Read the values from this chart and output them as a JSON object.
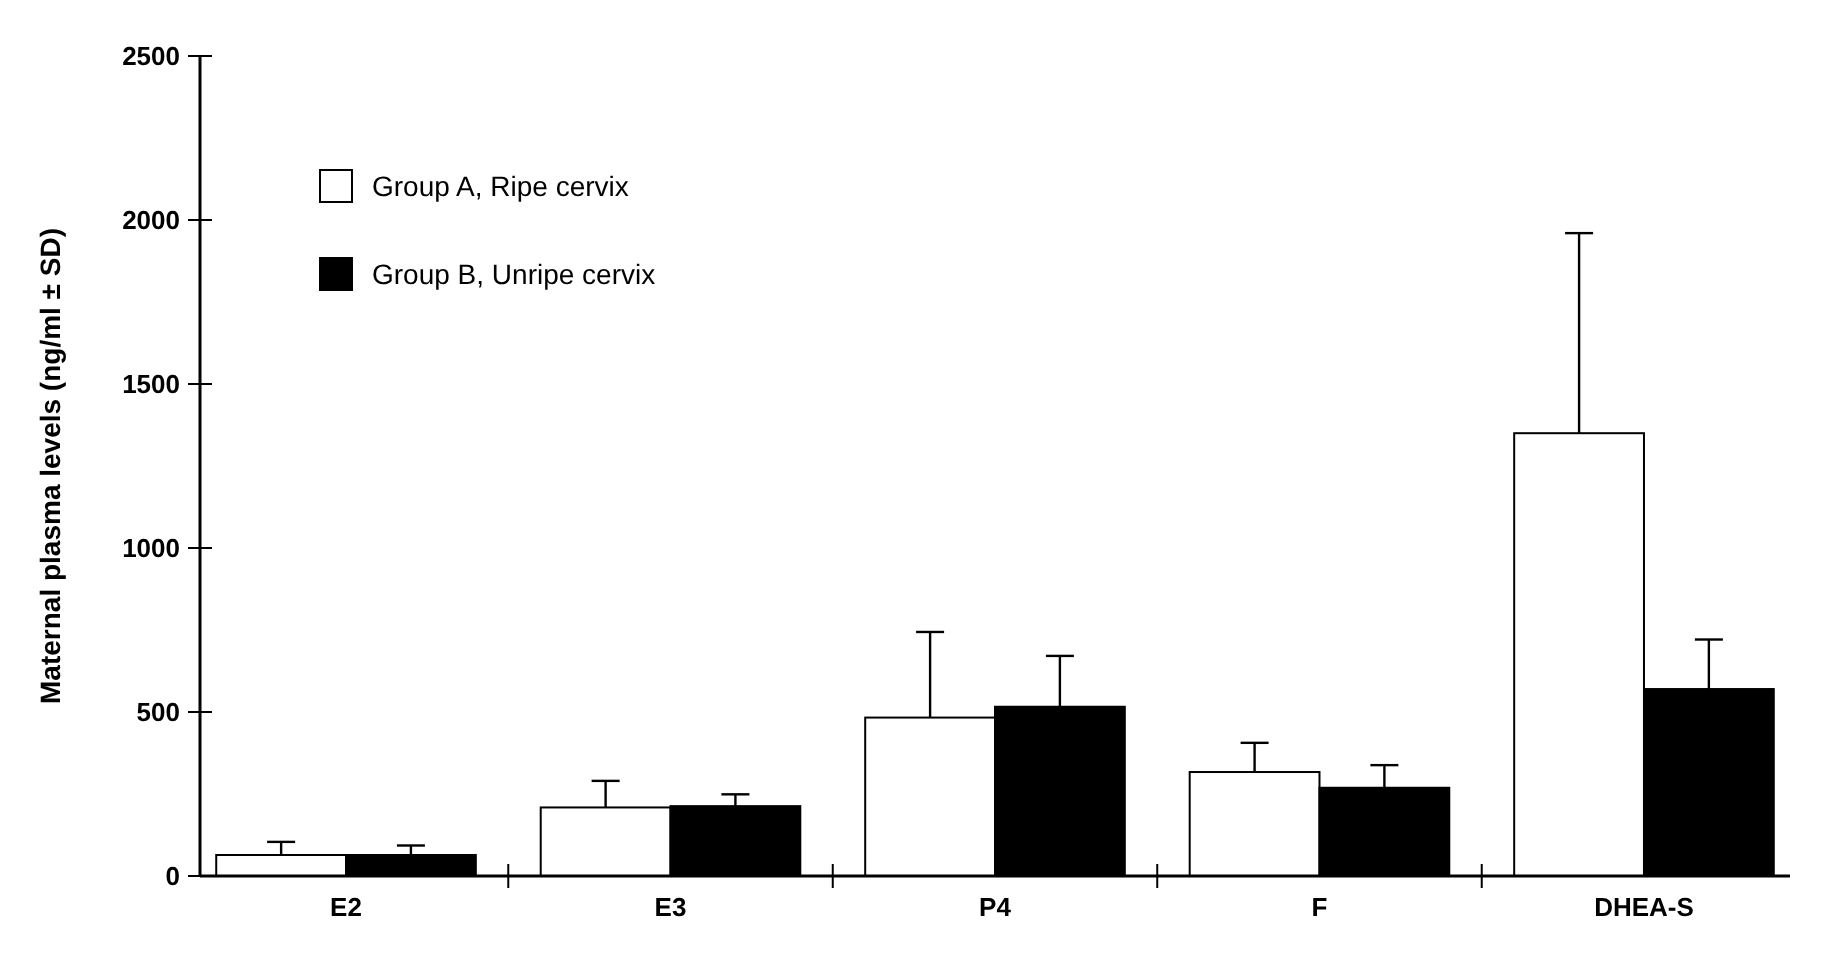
{
  "chart_data": {
    "type": "bar",
    "ylabel": "Maternal plasma levels (ng/ml ± SD)",
    "categories": [
      "E2",
      "E3",
      "P4",
      "F",
      "DHEA-S"
    ],
    "series": [
      {
        "name": "Group A, Ripe cervix",
        "color": "#ffffff",
        "values": [
          64,
          209,
          483,
          317,
          1350
        ],
        "errors": [
          [
            64,
            104
          ],
          [
            209,
            290
          ],
          [
            483,
            744
          ],
          [
            317,
            406
          ],
          [
            1350,
            1960
          ]
        ]
      },
      {
        "name": "Group B, Unripe cervix",
        "color": "#000000",
        "values": [
          64,
          213,
          516,
          269,
          570
        ],
        "errors": [
          [
            64,
            93
          ],
          [
            213,
            249
          ],
          [
            516,
            671
          ],
          [
            269,
            338
          ],
          [
            570,
            721
          ]
        ]
      }
    ],
    "ylim": [
      0,
      2500
    ],
    "yticks": [
      0,
      500,
      1000,
      1500,
      2000,
      2500
    ],
    "grid": false,
    "legend": "top left"
  }
}
